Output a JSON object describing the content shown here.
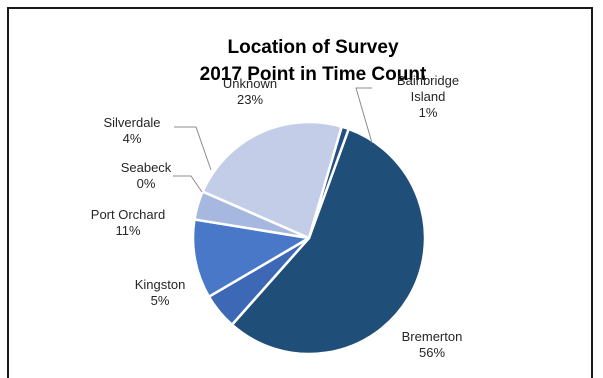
{
  "chart_data": {
    "type": "pie",
    "title": "Location of Survey",
    "subtitle": "2017 Point in Time Count",
    "slices": [
      {
        "label": "Bremerton",
        "value": 56,
        "display": "56%",
        "color": "#1f4e79"
      },
      {
        "label": "Kingston",
        "value": 5,
        "display": "5%",
        "color": "#3d68b5"
      },
      {
        "label": "Port Orchard",
        "value": 11,
        "display": "11%",
        "color": "#4a78c8"
      },
      {
        "label": "Seabeck",
        "value": 0,
        "display": "0%",
        "color": "#7f9bd4"
      },
      {
        "label": "Silverdale",
        "value": 4,
        "display": "4%",
        "color": "#a7b8e0"
      },
      {
        "label": "Unknown",
        "value": 23,
        "display": "23%",
        "color": "#c3cde8"
      },
      {
        "label": "Bainbridge Island",
        "value": 1,
        "display": "1%",
        "color": "#254f80"
      }
    ]
  }
}
